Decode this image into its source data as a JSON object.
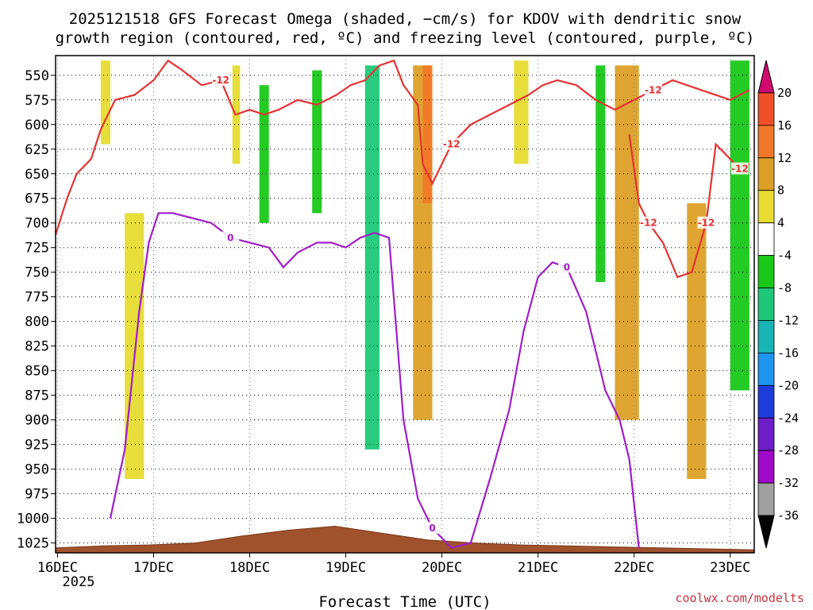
{
  "chart_data": {
    "type": "heatmap",
    "title_line1": "2025121518 GFS Forecast Omega (shaded, −cm/s) for KDOV with dendritic snow",
    "title_line2": "growth region (contoured, red, ºC) and freezing level (contoured, purple, ºC)",
    "xlabel": "Forecast Time (UTC)",
    "ylabel": "",
    "credit": "coolwx.com/modelts",
    "x_ticks": [
      "16DEC",
      "17DEC",
      "18DEC",
      "19DEC",
      "20DEC",
      "21DEC",
      "22DEC",
      "23DEC"
    ],
    "x_year_label": "2025",
    "x_range_days": [
      15.98,
      23.25
    ],
    "y_ticks": [
      550,
      575,
      600,
      625,
      650,
      675,
      700,
      725,
      750,
      775,
      800,
      825,
      850,
      875,
      900,
      925,
      950,
      975,
      1000,
      1025
    ],
    "ylim_hpa": [
      1035,
      530
    ],
    "colorbar": {
      "tick_labels": [
        "20",
        "16",
        "12",
        "8",
        "4",
        "-4",
        "-8",
        "-12",
        "-16",
        "-20",
        "-24",
        "-28",
        "-32",
        "-36"
      ],
      "colors": [
        "#d10a6e",
        "#f05028",
        "#f07828",
        "#dca028",
        "#e6dc32",
        "#ffffff",
        "#19c819",
        "#1ec878",
        "#19b4b4",
        "#1e96f0",
        "#1e3cdc",
        "#6e1ec8",
        "#a00ac8",
        "#a0a0a0",
        "#000000"
      ]
    },
    "shading_regions": [
      {
        "x": [
          16.45,
          16.55
        ],
        "p": [
          535,
          620
        ],
        "omega": 4
      },
      {
        "x": [
          16.7,
          16.9
        ],
        "p": [
          690,
          960
        ],
        "omega": 4
      },
      {
        "x": [
          17.82,
          17.9
        ],
        "p": [
          540,
          640
        ],
        "omega": 4
      },
      {
        "x": [
          18.1,
          18.2
        ],
        "p": [
          560,
          700
        ],
        "omega": -8
      },
      {
        "x": [
          18.65,
          18.75
        ],
        "p": [
          545,
          690
        ],
        "omega": -8
      },
      {
        "x": [
          19.2,
          19.35
        ],
        "p": [
          540,
          930
        ],
        "omega": -12
      },
      {
        "x": [
          19.7,
          19.9
        ],
        "p": [
          540,
          900
        ],
        "omega": 8
      },
      {
        "x": [
          19.8,
          19.9
        ],
        "p": [
          540,
          680
        ],
        "omega": 12
      },
      {
        "x": [
          20.75,
          20.9
        ],
        "p": [
          535,
          640
        ],
        "omega": 4
      },
      {
        "x": [
          21.6,
          21.7
        ],
        "p": [
          540,
          760
        ],
        "omega": -8
      },
      {
        "x": [
          21.8,
          22.05
        ],
        "p": [
          540,
          900
        ],
        "omega": 8
      },
      {
        "x": [
          22.55,
          22.75
        ],
        "p": [
          680,
          960
        ],
        "omega": 8
      },
      {
        "x": [
          23.0,
          23.2
        ],
        "p": [
          535,
          870
        ],
        "omega": -8
      }
    ],
    "series": [
      {
        "name": "dendritic snow growth region (-12 C isotherm)",
        "color": "#e63232",
        "label": "-12",
        "x": [
          15.98,
          16.1,
          16.2,
          16.35,
          16.45,
          16.6,
          16.8,
          17.0,
          17.15,
          17.3,
          17.5,
          17.7,
          17.85,
          18.0,
          18.15,
          18.3,
          18.5,
          18.7,
          18.9,
          19.05,
          19.2,
          19.35,
          19.5,
          19.6,
          19.75,
          19.8,
          19.9,
          20.1,
          20.3,
          20.5,
          20.7,
          20.9,
          21.05,
          21.2,
          21.4,
          21.6,
          21.8,
          22.0,
          22.2,
          22.4,
          22.55,
          22.7,
          22.85,
          23.0,
          23.2
        ],
        "p": [
          712,
          675,
          650,
          635,
          605,
          575,
          570,
          555,
          535,
          545,
          560,
          555,
          590,
          585,
          590,
          585,
          575,
          580,
          570,
          560,
          555,
          540,
          535,
          560,
          580,
          640,
          660,
          620,
          600,
          590,
          580,
          570,
          560,
          555,
          560,
          575,
          585,
          575,
          565,
          555,
          560,
          565,
          570,
          575,
          565
        ]
      },
      {
        "name": "-12 C isotherm (lower loop)",
        "color": "#e63232",
        "label": "-12",
        "x": [
          21.95,
          22.05,
          22.15,
          22.3,
          22.45,
          22.6,
          22.75,
          22.85,
          22.95,
          23.1,
          23.2
        ],
        "p": [
          610,
          680,
          700,
          720,
          755,
          750,
          700,
          620,
          630,
          645,
          640
        ]
      },
      {
        "name": "freezing level (0 C isotherm)",
        "color": "#a01ec8",
        "label": "0",
        "x": [
          16.55,
          16.7,
          16.85,
          16.95,
          17.05,
          17.2,
          17.4,
          17.6,
          17.8,
          18.0,
          18.2,
          18.35,
          18.5,
          18.7,
          18.85,
          19.0,
          19.15,
          19.3,
          19.45,
          19.6,
          19.75,
          19.9,
          20.1,
          20.3,
          20.5,
          20.7,
          20.85,
          21.0,
          21.15,
          21.3,
          21.5,
          21.7,
          21.85,
          21.95,
          22.05
        ],
        "p": [
          1000,
          930,
          790,
          720,
          690,
          690,
          695,
          700,
          715,
          720,
          725,
          745,
          730,
          720,
          720,
          725,
          715,
          710,
          715,
          900,
          980,
          1010,
          1030,
          1025,
          960,
          890,
          810,
          755,
          740,
          745,
          790,
          870,
          900,
          940,
          1030
        ]
      }
    ],
    "terrain_surface_hpa": [
      1030,
      1028,
      1027,
      1025,
      1018,
      1012,
      1008,
      1015,
      1022,
      1025,
      1027,
      1028,
      1029,
      1030,
      1031,
      1032
    ]
  }
}
